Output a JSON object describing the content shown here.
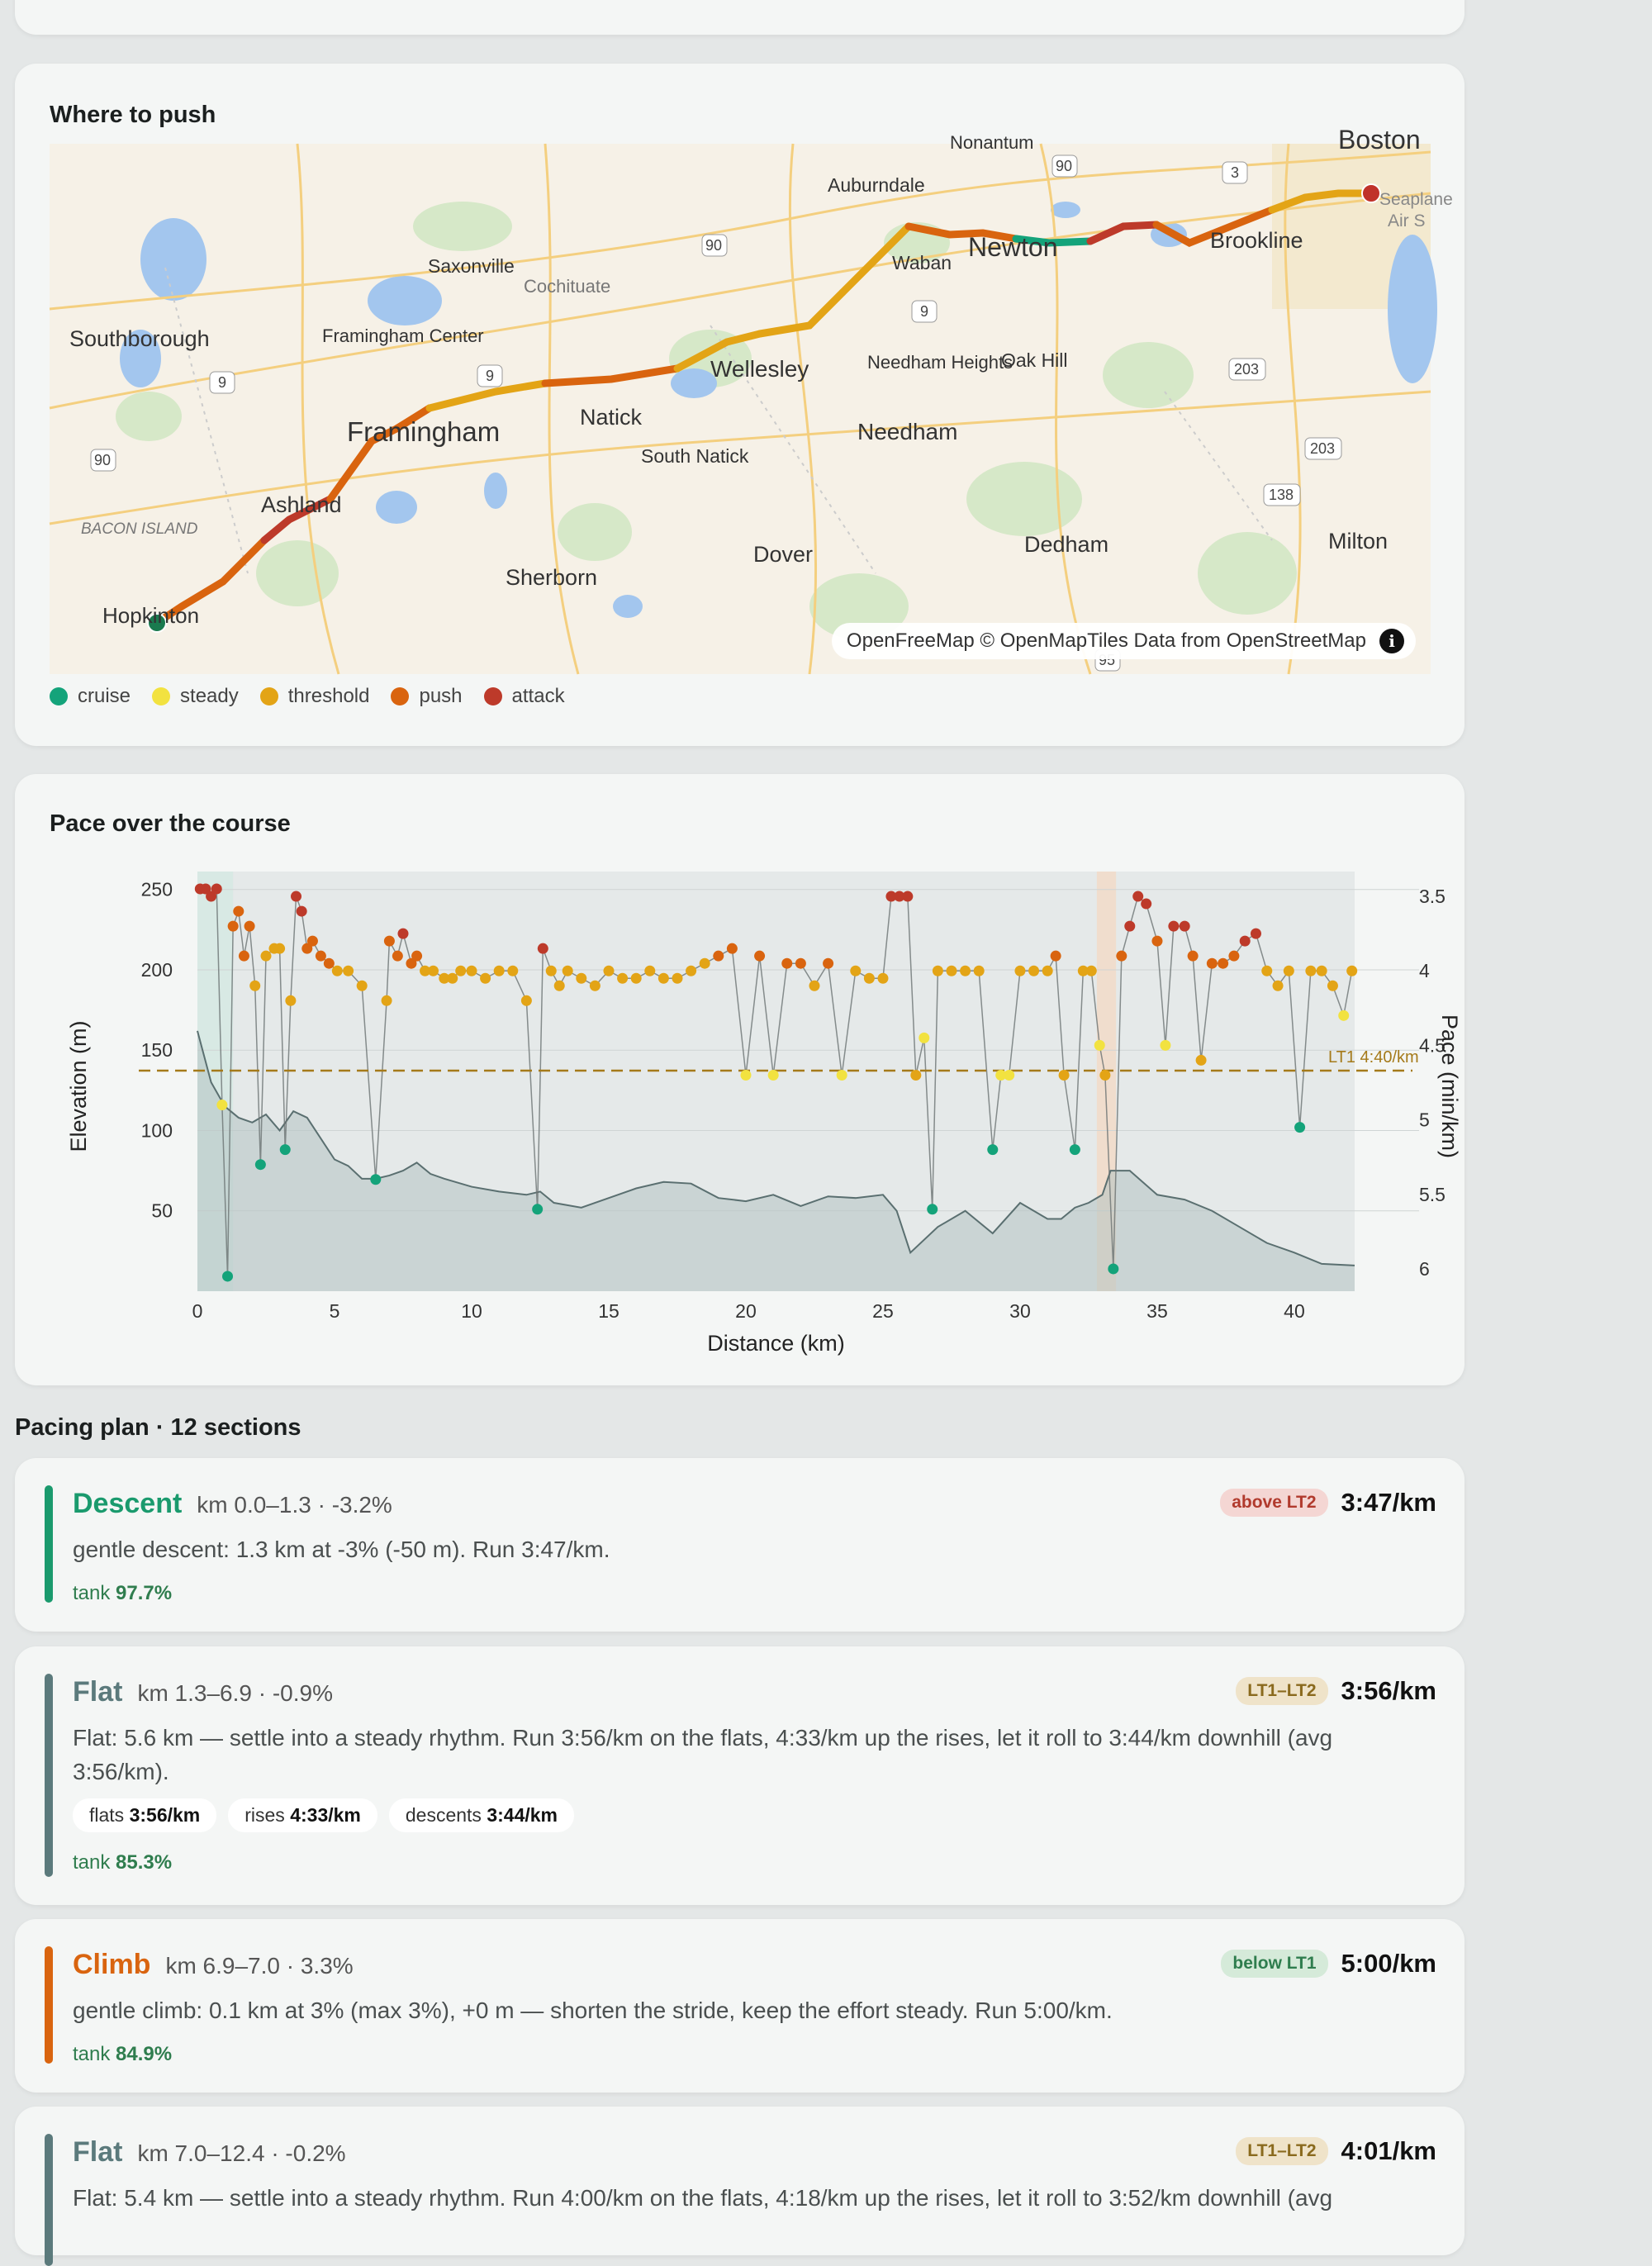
{
  "map_card": {
    "title": "Where to push",
    "attribution": "OpenFreeMap © OpenMapTiles Data from OpenStreetMap",
    "info_glyph": "i",
    "places": [
      {
        "name": "Nonantum"
      },
      {
        "name": "Auburndale"
      },
      {
        "name": "Boston"
      },
      {
        "name": "Waban"
      },
      {
        "name": "Newton"
      },
      {
        "name": "Brookline"
      },
      {
        "name": "Saxonville"
      },
      {
        "name": "Cochituate"
      },
      {
        "name": "Southborough"
      },
      {
        "name": "Framingham Center"
      },
      {
        "name": "Wellesley"
      },
      {
        "name": "Needham Heights"
      },
      {
        "name": "Oak Hill"
      },
      {
        "name": "Framingham"
      },
      {
        "name": "Natick"
      },
      {
        "name": "Needham"
      },
      {
        "name": "South Natick"
      },
      {
        "name": "Ashland"
      },
      {
        "name": "BACON ISLAND"
      },
      {
        "name": "Dover"
      },
      {
        "name": "Dedham"
      },
      {
        "name": "Milton"
      },
      {
        "name": "Sherborn"
      },
      {
        "name": "Hopkinton"
      },
      {
        "name": "Seaplane"
      },
      {
        "name": "Air S"
      }
    ],
    "route_shields": [
      "90",
      "3",
      "90",
      "9",
      "9",
      "9",
      "90",
      "203",
      "203",
      "138",
      "95"
    ]
  },
  "legend": [
    {
      "label": "cruise",
      "color": "#14a37a"
    },
    {
      "label": "steady",
      "color": "#f2e240"
    },
    {
      "label": "threshold",
      "color": "#e3a416"
    },
    {
      "label": "push",
      "color": "#d9640f"
    },
    {
      "label": "attack",
      "color": "#bd3a2a"
    }
  ],
  "pace_card": {
    "title": "Pace over the course"
  },
  "chart_data": {
    "type": "line",
    "xlabel": "Distance (km)",
    "ylabel_left": "Elevation (m)",
    "ylabel_right": "Pace (min/km)",
    "xlim": [
      0,
      42.2
    ],
    "ylim_left": [
      0,
      255
    ],
    "ylim_right_pace": [
      3.4,
      6.15
    ],
    "x_ticks": [
      "0",
      "5",
      "10",
      "15",
      "20",
      "25",
      "30",
      "35",
      "40"
    ],
    "y_left_ticks": [
      "50",
      "100",
      "150",
      "200",
      "250"
    ],
    "y_right_ticks": [
      "3.5",
      "4",
      "4.5",
      "5",
      "5.5",
      "6"
    ],
    "reference_line": {
      "label": "LT1 4:40/km",
      "pace": 4.67
    },
    "elevation": {
      "x": [
        0,
        0.5,
        1,
        1.5,
        2,
        2.5,
        3,
        3.5,
        4,
        4.5,
        5,
        5.5,
        6,
        6.5,
        7,
        7.5,
        8,
        8.5,
        9,
        10,
        11,
        12,
        12.5,
        13,
        14,
        15,
        16,
        17,
        18,
        19,
        20,
        21,
        22,
        23,
        24,
        25,
        25.5,
        26,
        27,
        28,
        29,
        30,
        31,
        31.5,
        32,
        32.5,
        33,
        33.3,
        34,
        35,
        36,
        37,
        38,
        39,
        40,
        41,
        42.2
      ],
      "y": [
        162,
        130,
        115,
        108,
        105,
        110,
        100,
        112,
        108,
        95,
        82,
        78,
        70,
        70,
        72,
        75,
        80,
        73,
        70,
        65,
        62,
        60,
        62,
        55,
        52,
        58,
        64,
        68,
        67,
        58,
        56,
        60,
        53,
        59,
        58,
        60,
        50,
        24,
        40,
        50,
        36,
        55,
        45,
        45,
        52,
        55,
        60,
        75,
        75,
        60,
        57,
        50,
        40,
        30,
        24,
        17,
        16
      ]
    },
    "pace_series": {
      "name": "pace",
      "x": [
        0.1,
        0.3,
        0.5,
        0.7,
        0.9,
        1.1,
        1.3,
        1.5,
        1.7,
        1.9,
        2.1,
        2.3,
        2.5,
        2.8,
        3.0,
        3.2,
        3.4,
        3.6,
        3.8,
        4.0,
        4.2,
        4.5,
        4.8,
        5.1,
        5.5,
        6.0,
        6.5,
        6.9,
        7.0,
        7.3,
        7.5,
        7.8,
        8.0,
        8.3,
        8.6,
        9.0,
        9.3,
        9.6,
        10.0,
        10.5,
        11.0,
        11.5,
        12.0,
        12.4,
        12.6,
        12.9,
        13.2,
        13.5,
        14.0,
        14.5,
        15.0,
        15.5,
        16.0,
        16.5,
        17.0,
        17.5,
        18.0,
        18.5,
        19.0,
        19.5,
        20.0,
        20.5,
        21.0,
        21.5,
        22.0,
        22.5,
        23.0,
        23.5,
        24.0,
        24.5,
        25.0,
        25.3,
        25.6,
        25.9,
        26.2,
        26.5,
        26.8,
        27.0,
        27.5,
        28.0,
        28.5,
        29.0,
        29.3,
        29.6,
        30.0,
        30.5,
        31.0,
        31.3,
        31.6,
        32.0,
        32.3,
        32.6,
        32.9,
        33.1,
        33.4,
        33.7,
        34.0,
        34.3,
        34.6,
        35.0,
        35.3,
        35.6,
        36.0,
        36.3,
        36.6,
        37.0,
        37.4,
        37.8,
        38.2,
        38.6,
        39.0,
        39.4,
        39.8,
        40.2,
        40.6,
        41.0,
        41.4,
        41.8,
        42.1
      ],
      "pace": [
        3.45,
        3.45,
        3.5,
        3.45,
        4.9,
        6.05,
        3.7,
        3.6,
        3.9,
        3.7,
        4.1,
        5.3,
        3.9,
        3.85,
        3.85,
        5.2,
        4.2,
        3.5,
        3.6,
        3.85,
        3.8,
        3.9,
        3.95,
        4.0,
        4.0,
        4.1,
        5.4,
        4.2,
        3.8,
        3.9,
        3.75,
        3.95,
        3.9,
        4.0,
        4.0,
        4.05,
        4.05,
        4.0,
        4.0,
        4.05,
        4.0,
        4.0,
        4.2,
        5.6,
        3.85,
        4.0,
        4.1,
        4.0,
        4.05,
        4.1,
        4.0,
        4.05,
        4.05,
        4.0,
        4.05,
        4.05,
        4.0,
        3.95,
        3.9,
        3.85,
        4.7,
        3.9,
        4.7,
        3.95,
        3.95,
        4.1,
        3.95,
        4.7,
        4.0,
        4.05,
        4.05,
        3.5,
        3.5,
        3.5,
        4.7,
        4.45,
        5.6,
        4.0,
        4.0,
        4.0,
        4.0,
        5.2,
        4.7,
        4.7,
        4.0,
        4.0,
        4.0,
        3.9,
        4.7,
        5.2,
        4.0,
        4.0,
        4.5,
        4.7,
        6.0,
        3.9,
        3.7,
        3.5,
        3.55,
        3.8,
        4.5,
        3.7,
        3.7,
        3.9,
        4.6,
        3.95,
        3.95,
        3.9,
        3.8,
        3.75,
        4.0,
        4.1,
        4.0,
        5.05,
        4.0,
        4.0,
        4.1,
        4.3,
        4.0
      ],
      "zone": [
        "attack",
        "attack",
        "attack",
        "attack",
        "steady",
        "cruise",
        "push",
        "push",
        "push",
        "push",
        "threshold",
        "cruise",
        "threshold",
        "threshold",
        "threshold",
        "cruise",
        "threshold",
        "attack",
        "attack",
        "push",
        "push",
        "push",
        "push",
        "threshold",
        "threshold",
        "threshold",
        "cruise",
        "threshold",
        "push",
        "push",
        "attack",
        "push",
        "push",
        "threshold",
        "threshold",
        "threshold",
        "threshold",
        "threshold",
        "threshold",
        "threshold",
        "threshold",
        "threshold",
        "threshold",
        "cruise",
        "attack",
        "threshold",
        "threshold",
        "threshold",
        "threshold",
        "threshold",
        "threshold",
        "threshold",
        "threshold",
        "threshold",
        "threshold",
        "threshold",
        "threshold",
        "threshold",
        "push",
        "push",
        "steady",
        "push",
        "steady",
        "push",
        "push",
        "threshold",
        "push",
        "steady",
        "threshold",
        "threshold",
        "threshold",
        "attack",
        "attack",
        "attack",
        "threshold",
        "steady",
        "cruise",
        "threshold",
        "threshold",
        "threshold",
        "threshold",
        "cruise",
        "steady",
        "steady",
        "threshold",
        "threshold",
        "threshold",
        "push",
        "threshold",
        "cruise",
        "threshold",
        "threshold",
        "steady",
        "threshold",
        "cruise",
        "push",
        "attack",
        "attack",
        "attack",
        "push",
        "steady",
        "attack",
        "attack",
        "push",
        "threshold",
        "push",
        "push",
        "push",
        "attack",
        "attack",
        "threshold",
        "threshold",
        "threshold",
        "cruise",
        "threshold",
        "threshold",
        "threshold",
        "steady",
        "threshold"
      ]
    }
  },
  "plan": {
    "heading": "Pacing plan · 12 sections",
    "sections": [
      {
        "type": "Descent",
        "range": "km 0.0–1.3 · -3.2%",
        "badge": "above LT2",
        "pace": "3:47/km",
        "description": "gentle descent: 1.3 km at -3% (-50 m). Run 3:47/km.",
        "pills": [],
        "tank_label": "tank",
        "tank_value": "97.7%",
        "color": "#1a9a6d"
      },
      {
        "type": "Flat",
        "range": "km 1.3–6.9 · -0.9%",
        "badge": "LT1–LT2",
        "pace": "3:56/km",
        "description": "Flat: 5.6 km — settle into a steady rhythm. Run 3:56/km on the flats, 4:33/km up the rises, let it roll to 3:44/km downhill (avg 3:56/km).",
        "pills": [
          {
            "label": "flats",
            "value": "3:56/km"
          },
          {
            "label": "rises",
            "value": "4:33/km"
          },
          {
            "label": "descents",
            "value": "3:44/km"
          }
        ],
        "tank_label": "tank",
        "tank_value": "85.3%",
        "color": "#5b7a7c"
      },
      {
        "type": "Climb",
        "range": "km 6.9–7.0 · 3.3%",
        "badge": "below LT1",
        "pace": "5:00/km",
        "description": "gentle climb: 0.1 km at 3% (max 3%), +0 m — shorten the stride, keep the effort steady. Run 5:00/km.",
        "pills": [],
        "tank_label": "tank",
        "tank_value": "84.9%",
        "color": "#d9640f"
      },
      {
        "type": "Flat",
        "range": "km 7.0–12.4 · -0.2%",
        "badge": "LT1–LT2",
        "pace": "4:01/km",
        "description": "Flat: 5.4 km — settle into a steady rhythm. Run 4:00/km on the flats, 4:18/km up the rises, let it roll to 3:52/km downhill (avg",
        "pills": [],
        "tank_label": "",
        "tank_value": "",
        "color": "#5b7a7c"
      }
    ]
  }
}
